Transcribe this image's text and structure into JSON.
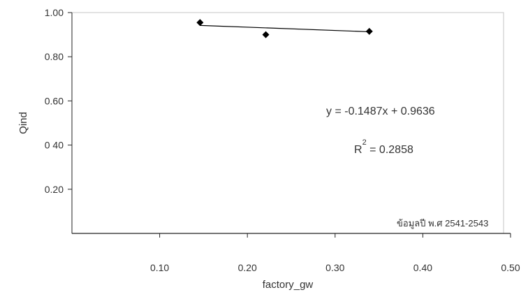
{
  "chart_data": {
    "type": "scatter",
    "title": "",
    "xlabel": "factory_gw",
    "ylabel": "Qind",
    "xlim": [
      0.0,
      0.5
    ],
    "ylim": [
      0.0,
      1.0
    ],
    "xticks": [
      {
        "value": 0.1,
        "label": "0.10"
      },
      {
        "value": 0.2,
        "label": "0.20"
      },
      {
        "value": 0.3,
        "label": "0.30"
      },
      {
        "value": 0.4,
        "label": "0.40"
      },
      {
        "value": 0.5,
        "label": "0.50"
      }
    ],
    "yticks": [
      {
        "value": 0.2,
        "label": "0.20"
      },
      {
        "value": 0.4,
        "label": "0 40"
      },
      {
        "value": 0.6,
        "label": "0.60"
      },
      {
        "value": 0.8,
        "label": "0.80"
      },
      {
        "value": 1.0,
        "label": "1.00"
      }
    ],
    "grid": false,
    "legend": "none",
    "series": [
      {
        "marker": "diamond",
        "color": "#000000",
        "points": [
          {
            "x": 0.146,
            "y": 0.955
          },
          {
            "x": 0.221,
            "y": 0.9
          },
          {
            "x": 0.339,
            "y": 0.915
          }
        ]
      }
    ],
    "trendline": {
      "slope": -0.1487,
      "intercept": 0.9636,
      "x_range": [
        0.146,
        0.339
      ],
      "color": "#000000"
    },
    "annotations": {
      "equation": "y = -0.1487x + 0.9636",
      "r2_base": "R",
      "r2_sup": "2",
      "r2_value": " = 0.2858",
      "source": "ข้อมูลปี พ.ศ  2541-2543"
    }
  }
}
